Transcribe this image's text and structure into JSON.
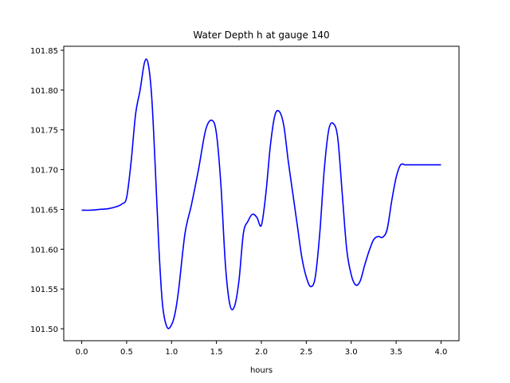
{
  "chart_data": {
    "type": "line",
    "title": "Water Depth h at gauge 140",
    "xlabel": "hours",
    "ylabel": "",
    "xlim": [
      -0.2,
      4.2
    ],
    "ylim": [
      101.485,
      101.855
    ],
    "xticks": [
      0.0,
      0.5,
      1.0,
      1.5,
      2.0,
      2.5,
      3.0,
      3.5,
      4.0
    ],
    "xtick_labels": [
      "0.0",
      "0.5",
      "1.0",
      "1.5",
      "2.0",
      "2.5",
      "3.0",
      "3.5",
      "4.0"
    ],
    "yticks": [
      101.5,
      101.55,
      101.6,
      101.65,
      101.7,
      101.75,
      101.8,
      101.85
    ],
    "ytick_labels": [
      "101.50",
      "101.55",
      "101.60",
      "101.65",
      "101.70",
      "101.75",
      "101.80",
      "101.85"
    ],
    "grid": false,
    "series": [
      {
        "color": "#0000ff",
        "x": [
          0.0,
          0.1,
          0.2,
          0.3,
          0.4,
          0.45,
          0.5,
          0.55,
          0.6,
          0.65,
          0.7,
          0.74,
          0.78,
          0.82,
          0.86,
          0.9,
          0.95,
          1.0,
          1.04,
          1.08,
          1.15,
          1.22,
          1.3,
          1.38,
          1.45,
          1.5,
          1.55,
          1.6,
          1.65,
          1.7,
          1.75,
          1.8,
          1.85,
          1.9,
          1.95,
          2.0,
          2.05,
          2.1,
          2.15,
          2.2,
          2.25,
          2.3,
          2.35,
          2.4,
          2.45,
          2.5,
          2.55,
          2.6,
          2.65,
          2.7,
          2.75,
          2.8,
          2.85,
          2.9,
          2.95,
          3.0,
          3.05,
          3.1,
          3.15,
          3.2,
          3.25,
          3.3,
          3.35,
          3.4,
          3.45,
          3.5,
          3.55,
          3.6,
          3.65,
          3.7,
          3.75,
          3.8,
          3.85,
          3.9,
          3.95,
          4.0
        ],
        "y": [
          101.649,
          101.649,
          101.65,
          101.651,
          101.654,
          101.657,
          101.665,
          101.71,
          101.77,
          101.8,
          101.835,
          101.833,
          101.79,
          101.7,
          101.6,
          101.53,
          101.502,
          101.505,
          101.52,
          101.55,
          101.62,
          101.655,
          101.7,
          101.75,
          101.762,
          101.745,
          101.68,
          101.58,
          101.53,
          101.528,
          101.56,
          101.62,
          101.635,
          101.644,
          101.64,
          101.63,
          101.67,
          101.73,
          101.768,
          101.773,
          101.755,
          101.71,
          101.67,
          101.63,
          101.59,
          101.565,
          101.553,
          101.565,
          101.62,
          101.7,
          101.75,
          101.758,
          101.74,
          101.67,
          101.6,
          101.568,
          101.555,
          101.56,
          101.58,
          101.598,
          101.612,
          101.616,
          101.615,
          101.625,
          101.66,
          101.69,
          101.706,
          101.706,
          101.706,
          101.706,
          101.706,
          101.706,
          101.706,
          101.706,
          101.706,
          101.706
        ]
      }
    ]
  }
}
